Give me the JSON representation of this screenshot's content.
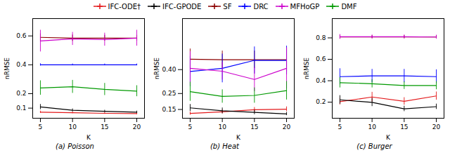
{
  "chart_data": [
    {
      "type": "line",
      "title": "(a) Poisson",
      "xlabel": "K",
      "ylabel": "nRMSE",
      "x": [
        5,
        10,
        15,
        20
      ],
      "xlim": [
        3.8,
        21.2
      ],
      "xticks": [
        5,
        10,
        15,
        20
      ],
      "ylim": [
        0.03,
        0.72
      ],
      "yticks": [
        0.1,
        0.2,
        0.4,
        0.6
      ],
      "grid": false,
      "legend": "top",
      "series": [
        {
          "name": "IFC-ODE†",
          "color": "#e31a1c",
          "marker": "+",
          "values": [
            0.072,
            0.068,
            0.064,
            0.062
          ],
          "errors": [
            0.008,
            0.006,
            0.006,
            0.006
          ]
        },
        {
          "name": "IFC-GPODE",
          "color": "#000000",
          "marker": "+",
          "values": [
            0.108,
            0.085,
            0.078,
            0.072
          ],
          "errors": [
            0.018,
            0.01,
            0.008,
            0.008
          ]
        },
        {
          "name": "SF",
          "color": "#8b0000",
          "marker": "+",
          "values": [
            0.59,
            0.585,
            0.585,
            0.585
          ],
          "errors": [
            0.025,
            0.022,
            0.02,
            0.02
          ]
        },
        {
          "name": "DRC",
          "color": "#0000ff",
          "marker": "+",
          "values": [
            0.4,
            0.4,
            0.4,
            0.4
          ],
          "errors": [
            0.008,
            0.006,
            0.006,
            0.006
          ]
        },
        {
          "name": "MFHoGP",
          "color": "#cc00cc",
          "marker": "+",
          "values": [
            0.565,
            0.58,
            0.575,
            0.585
          ],
          "errors": [
            0.075,
            0.045,
            0.045,
            0.055
          ]
        },
        {
          "name": "DMF",
          "color": "#009900",
          "marker": "+",
          "values": [
            0.24,
            0.248,
            0.23,
            0.218
          ],
          "errors": [
            0.05,
            0.045,
            0.042,
            0.038
          ]
        }
      ]
    },
    {
      "type": "line",
      "title": "(b) Heat",
      "xlabel": "K",
      "ylabel": "nRMSE",
      "x": [
        5,
        10,
        15,
        20
      ],
      "xlim": [
        3.8,
        21.2
      ],
      "xticks": [
        5,
        10,
        15,
        20
      ],
      "ylim": [
        0.095,
        0.72
      ],
      "yticks": [
        0.15,
        0.25,
        {
          "value": 0.4,
          "label": "0.40"
        }
      ],
      "grid": false,
      "legend": "top",
      "series": [
        {
          "name": "IFC-ODE†",
          "color": "#e31a1c",
          "marker": "+",
          "values": [
            0.125,
            0.135,
            0.148,
            0.152
          ],
          "errors": [
            0.01,
            0.012,
            0.015,
            0.015
          ]
        },
        {
          "name": "IFC-GPODE",
          "color": "#000000",
          "marker": "+",
          "values": [
            0.16,
            0.142,
            0.132,
            0.122
          ],
          "errors": [
            0.022,
            0.018,
            0.014,
            0.01
          ]
        },
        {
          "name": "SF",
          "color": "#8b0000",
          "marker": "+",
          "values": [
            0.465,
            0.462,
            0.462,
            0.462
          ],
          "errors": [
            0.065,
            0.055,
            0.055,
            0.075
          ]
        },
        {
          "name": "DRC",
          "color": "#0000ff",
          "marker": "+",
          "values": [
            0.388,
            0.408,
            0.458,
            0.458
          ],
          "errors": [
            0.095,
            0.09,
            0.085,
            0.09
          ]
        },
        {
          "name": "MFHoGP",
          "color": "#cc00cc",
          "marker": "+",
          "values": [
            0.408,
            0.39,
            0.338,
            0.408
          ],
          "errors": [
            0.105,
            0.055,
            0.075,
            0.13
          ]
        },
        {
          "name": "DMF",
          "color": "#009900",
          "marker": "+",
          "values": [
            0.262,
            0.232,
            0.238,
            0.268
          ],
          "errors": [
            0.06,
            0.042,
            0.048,
            0.058
          ]
        }
      ]
    },
    {
      "type": "line",
      "title": "(c) Burger",
      "xlabel": "K",
      "ylabel": "nRMSE",
      "x": [
        5,
        10,
        15,
        20
      ],
      "xlim": [
        3.8,
        21.2
      ],
      "xticks": [
        5,
        10,
        15,
        20
      ],
      "ylim": [
        0.05,
        0.98
      ],
      "yticks": [
        0.2,
        0.4,
        0.6,
        0.8
      ],
      "grid": false,
      "legend": "top",
      "series": [
        {
          "name": "IFC-ODE†",
          "color": "#e31a1c",
          "marker": "+",
          "values": [
            0.205,
            0.248,
            0.208,
            0.258
          ],
          "errors": [
            0.03,
            0.045,
            0.035,
            0.038
          ]
        },
        {
          "name": "IFC-GPODE",
          "color": "#000000",
          "marker": "+",
          "values": [
            0.222,
            0.198,
            0.138,
            0.158
          ],
          "errors": [
            0.04,
            0.038,
            0.025,
            0.025
          ]
        },
        {
          "name": "SF",
          "color": "#8b0000",
          "marker": "+",
          "values": [
            0.808,
            0.808,
            0.808,
            0.808
          ],
          "errors": [
            0.018,
            0.014,
            0.014,
            0.014
          ]
        },
        {
          "name": "DRC",
          "color": "#0000ff",
          "marker": "+",
          "values": [
            0.438,
            0.445,
            0.445,
            0.438
          ],
          "errors": [
            0.075,
            0.062,
            0.062,
            0.065
          ]
        },
        {
          "name": "MFHoGP",
          "color": "#cc00cc",
          "marker": "+",
          "values": [
            0.81,
            0.81,
            0.81,
            0.808
          ],
          "errors": [
            0.022,
            0.018,
            0.018,
            0.018
          ]
        },
        {
          "name": "DMF",
          "color": "#009900",
          "marker": "+",
          "values": [
            0.382,
            0.372,
            0.355,
            0.355
          ],
          "errors": [
            0.048,
            0.038,
            0.035,
            0.038
          ]
        }
      ]
    }
  ]
}
